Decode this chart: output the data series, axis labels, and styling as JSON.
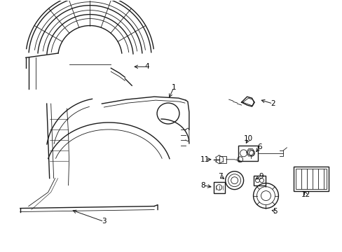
{
  "background_color": "#ffffff",
  "line_color": "#1a1a1a",
  "label_color": "#000000",
  "figsize": [
    4.89,
    3.6
  ],
  "dpi": 100,
  "lw_main": 1.0,
  "lw_thin": 0.6,
  "label_fontsize": 7.5
}
